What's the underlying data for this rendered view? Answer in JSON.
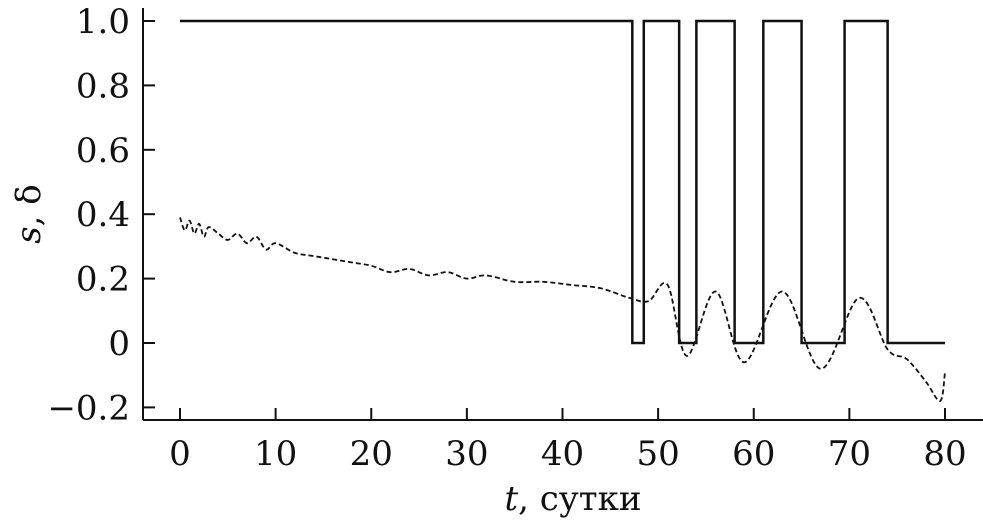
{
  "chart_data": {
    "type": "line",
    "xlabel": {
      "var": "t",
      "rest": ", сутки"
    },
    "ylabel": "s, δ",
    "xlim": [
      -3,
      83
    ],
    "ylim": [
      -0.25,
      1.05
    ],
    "x_ticks": [
      0,
      10,
      20,
      30,
      40,
      50,
      60,
      70,
      80
    ],
    "y_ticks": [
      -0.2,
      0,
      0.2,
      0.4,
      0.6,
      0.8,
      1.0
    ],
    "y_tick_labels": [
      "−0.2",
      "0",
      "0.2",
      "0.4",
      "0.6",
      "0.8",
      "1.0"
    ],
    "grid": false,
    "series": [
      {
        "style": "solid",
        "x": [
          0,
          47.3,
          47.3,
          48.5,
          48.5,
          52.2,
          52.2,
          54.0,
          54.0,
          58.0,
          58.0,
          61.0,
          61.0,
          65.0,
          65.0,
          69.5,
          69.5,
          74.0,
          74.0,
          80.0
        ],
        "y": [
          1,
          1,
          0,
          0,
          1,
          1,
          0,
          0,
          1,
          1,
          0,
          0,
          1,
          1,
          0,
          0,
          1,
          1,
          0,
          0
        ]
      },
      {
        "style": "dashed",
        "x": [
          0,
          0.5,
          1,
          1.5,
          2,
          2.5,
          3,
          4,
          5,
          6,
          7,
          8,
          9,
          10,
          12,
          14,
          16,
          18,
          20,
          22,
          24,
          26,
          28,
          30,
          32,
          35,
          38,
          41,
          44,
          47,
          49,
          51,
          53,
          56,
          59,
          63,
          67,
          71,
          74,
          76,
          78,
          79.5,
          80
        ],
        "y": [
          0.39,
          0.35,
          0.38,
          0.34,
          0.37,
          0.33,
          0.36,
          0.34,
          0.32,
          0.34,
          0.31,
          0.33,
          0.29,
          0.31,
          0.28,
          0.27,
          0.26,
          0.25,
          0.24,
          0.22,
          0.23,
          0.21,
          0.22,
          0.2,
          0.21,
          0.19,
          0.19,
          0.18,
          0.17,
          0.14,
          0.13,
          0.18,
          -0.04,
          0.16,
          -0.06,
          0.16,
          -0.08,
          0.14,
          -0.02,
          -0.05,
          -0.12,
          -0.18,
          -0.09
        ]
      }
    ]
  }
}
